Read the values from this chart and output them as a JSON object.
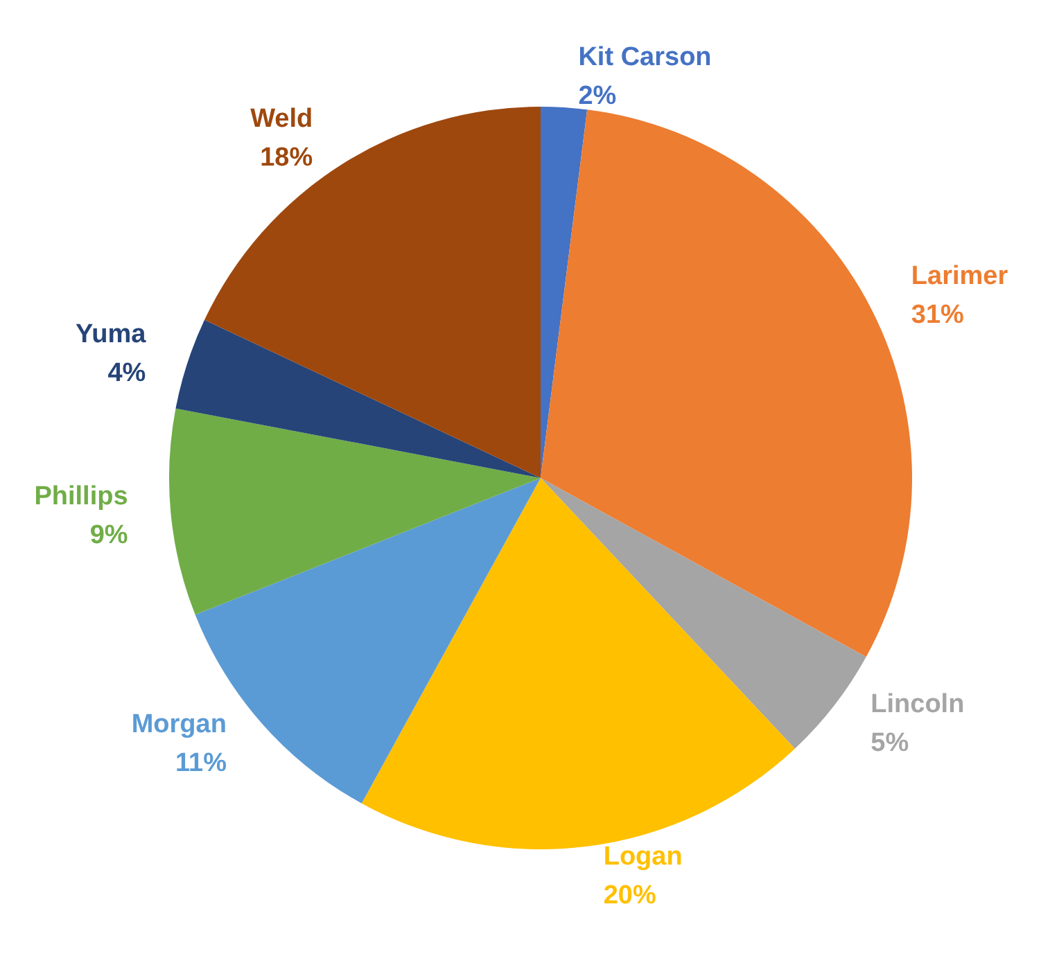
{
  "chart_data": {
    "type": "pie",
    "categories": [
      "Kit Carson",
      "Larimer",
      "Lincoln",
      "Logan",
      "Morgan",
      "Phillips",
      "Yuma",
      "Weld"
    ],
    "values": [
      2,
      31,
      5,
      20,
      11,
      9,
      4,
      18
    ],
    "value_labels": [
      "2%",
      "31%",
      "5%",
      "20%",
      "11%",
      "9%",
      "4%",
      "18%"
    ],
    "colors": [
      "#4472c4",
      "#ed7d31",
      "#a5a5a5",
      "#ffc000",
      "#5b9bd5",
      "#70ad47",
      "#264478",
      "#9e480e"
    ],
    "legend": false
  }
}
